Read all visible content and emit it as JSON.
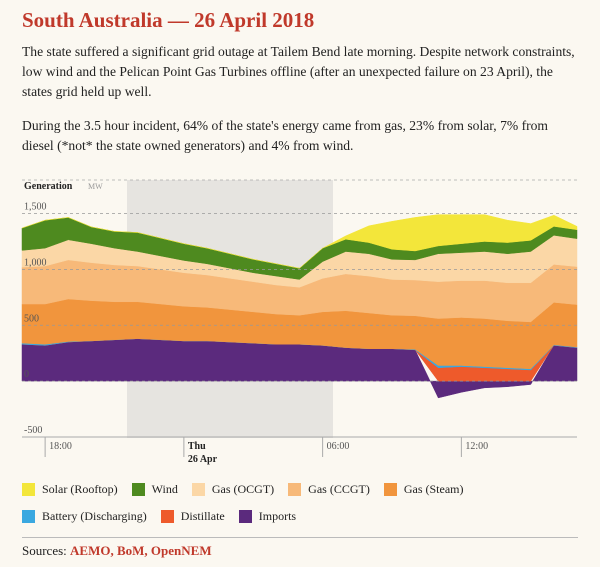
{
  "chart_data": {
    "type": "stacked-area",
    "title": "South Australia — 26 April 2018",
    "paragraphs": [
      "The state suffered a significant grid outage at Tailem Bend late morning. Despite network constraints, low wind and the Pelican Point Gas Turbines offline (after an unexpected failure on 23 April), the states grid held up well.",
      "During the 3.5 hour incident, 64% of the state's energy came from gas, 23% from solar, 7% from diesel (*not* the state owned generators) and 4% from wind."
    ],
    "y_label": "Generation",
    "y_unit": "MW",
    "categories": [
      null,
      "18:00",
      null,
      null,
      null,
      null,
      null,
      "Thu",
      null,
      null,
      null,
      null,
      null,
      "06:00",
      null,
      null,
      null,
      null,
      null,
      "12:00",
      null,
      null,
      null,
      null,
      null
    ],
    "date_label": "26 Apr",
    "ylim": [
      -500,
      1800
    ],
    "yticks": [
      -500,
      0,
      500,
      {
        "value": 1000,
        "label": "1,000"
      },
      {
        "value": 1500,
        "label": "1,500"
      }
    ],
    "grid": true,
    "series": [
      {
        "name": "Solar (Rooftop)",
        "color": "#f3e63a",
        "values": [
          0,
          0,
          0,
          0,
          0,
          0,
          0,
          0,
          0,
          0,
          0,
          0,
          0,
          0,
          30,
          150,
          250,
          300,
          280,
          260,
          240,
          200,
          150,
          100,
          30
        ]
      },
      {
        "name": "Wind",
        "color": "#4e8a1f",
        "values": [
          200,
          250,
          200,
          150,
          150,
          170,
          160,
          150,
          140,
          130,
          120,
          110,
          100,
          120,
          110,
          100,
          90,
          80,
          70,
          80,
          90,
          100,
          100,
          80,
          80
        ]
      },
      {
        "name": "Gas (OCGT)",
        "color": "#fbd7a6",
        "values": [
          150,
          160,
          180,
          170,
          150,
          130,
          120,
          110,
          100,
          90,
          80,
          80,
          70,
          150,
          200,
          200,
          180,
          180,
          250,
          250,
          260,
          260,
          280,
          260,
          250
        ]
      },
      {
        "name": "Gas (CCGT)",
        "color": "#f7b979",
        "values": [
          330,
          340,
          350,
          340,
          330,
          320,
          310,
          300,
          290,
          280,
          270,
          260,
          250,
          300,
          330,
          330,
          320,
          320,
          330,
          330,
          340,
          340,
          350,
          340,
          340
        ]
      },
      {
        "name": "Gas (Steam)",
        "color": "#f1953d",
        "values": [
          350,
          360,
          380,
          360,
          340,
          330,
          320,
          310,
          300,
          290,
          280,
          270,
          260,
          300,
          330,
          320,
          300,
          300,
          420,
          430,
          430,
          420,
          420,
          380,
          380
        ]
      },
      {
        "name": "Battery (Discharging)",
        "color": "#3aa8e0",
        "values": [
          10,
          10,
          5,
          0,
          0,
          0,
          0,
          0,
          0,
          0,
          0,
          0,
          0,
          0,
          0,
          0,
          0,
          5,
          20,
          10,
          10,
          10,
          10,
          5,
          5
        ]
      },
      {
        "name": "Distillate",
        "color": "#ee5a2b",
        "values": [
          0,
          0,
          0,
          0,
          0,
          0,
          0,
          0,
          0,
          0,
          0,
          0,
          0,
          0,
          0,
          0,
          0,
          0,
          120,
          130,
          120,
          110,
          100,
          0,
          0
        ]
      },
      {
        "name": "Imports",
        "color": "#5b2a7d",
        "values": [
          330,
          320,
          350,
          360,
          370,
          380,
          370,
          360,
          360,
          350,
          340,
          330,
          330,
          320,
          300,
          290,
          290,
          280,
          -150,
          -100,
          -60,
          -50,
          -30,
          320,
          300
        ]
      }
    ],
    "sources_label": "Sources:",
    "sources": "AEMO, BoM, OpenNEM"
  }
}
